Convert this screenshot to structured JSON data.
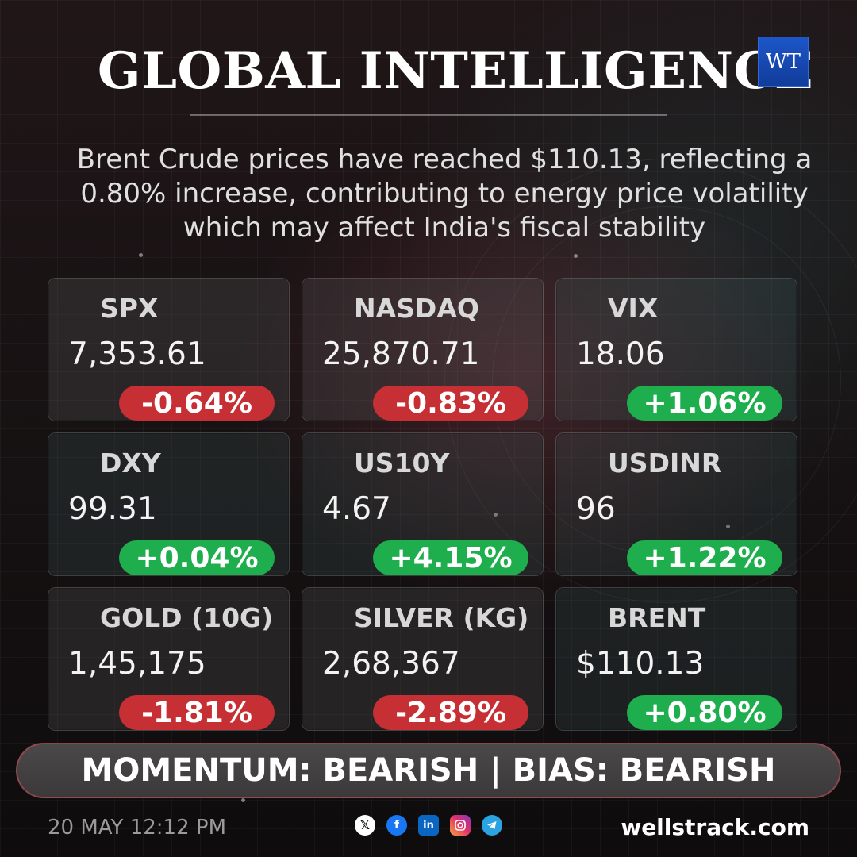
{
  "header": {
    "title": "GLOBAL INTELLIGENCE",
    "logo_text": "WT",
    "headline": "Brent Crude prices have reached $110.13, reflecting a 0.80% increase, contributing to energy price volatility which may affect India's fiscal stability"
  },
  "cards": [
    {
      "name": "SPX",
      "value": "7,353.61",
      "change": "-0.64%",
      "direction": "down"
    },
    {
      "name": "NASDAQ",
      "value": "25,870.71",
      "change": "-0.83%",
      "direction": "down"
    },
    {
      "name": "VIX",
      "value": "18.06",
      "change": "+1.06%",
      "direction": "up"
    },
    {
      "name": "DXY",
      "value": "99.31",
      "change": "+0.04%",
      "direction": "up"
    },
    {
      "name": "US10Y",
      "value": "4.67",
      "change": "+4.15%",
      "direction": "up"
    },
    {
      "name": "USDINR",
      "value": "96",
      "change": "+1.22%",
      "direction": "up"
    },
    {
      "name": "GOLD (10G)",
      "value": "1,45,175",
      "change": "-1.81%",
      "direction": "down"
    },
    {
      "name": "SILVER (KG)",
      "value": "2,68,367",
      "change": "-2.89%",
      "direction": "down"
    },
    {
      "name": "BRENT",
      "value": "$110.13",
      "change": "+0.80%",
      "direction": "up"
    }
  ],
  "momentum": "MOMENTUM: BEARISH | BIAS: BEARISH",
  "footer": {
    "date": "20 MAY 12:12 PM",
    "site": "wellstrack.com",
    "socials": [
      "x-icon",
      "facebook-icon",
      "linkedin-icon",
      "instagram-icon",
      "telegram-icon"
    ]
  },
  "colors": {
    "negative": "#c62f33",
    "positive": "#1fae4e",
    "logo": "#1d56c9"
  }
}
